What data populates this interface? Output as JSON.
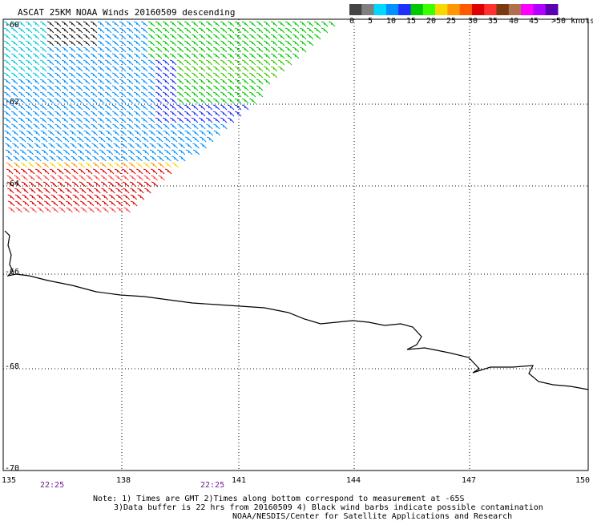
{
  "title": "ASCAT 25KM NOAA Winds 20160509 descending",
  "legend": {
    "colors": [
      "#444444",
      "#808080",
      "#00d8ff",
      "#0090ff",
      "#1e2fff",
      "#00c800",
      "#3cff00",
      "#f8d800",
      "#ff9800",
      "#ff5a00",
      "#dc0000",
      "#ff3030",
      "#7a3a10",
      "#b07050",
      "#ff00ff",
      "#b000ff",
      "#5a00b0"
    ],
    "labels": [
      "0",
      "5",
      "10",
      "15",
      "20",
      "25",
      "30",
      "35",
      "40",
      "45",
      ">50 knots"
    ]
  },
  "axes": {
    "lon_ticks": [
      "135",
      "138",
      "141",
      "144",
      "147",
      "150"
    ],
    "lat_ticks": [
      "-60",
      "-62",
      "-64",
      "-66",
      "-68",
      "-70"
    ]
  },
  "times": [
    "22:25",
    "22:25"
  ],
  "notes": [
    "Note: 1) Times are GMT 2)Times along bottom correspond to measurement at -65S",
    "3)Data buffer is 22 hrs from 20160509 4) Black wind barbs indicate possible contamination",
    "NOAA/NESDIS/Center for Satellite Applications and Research"
  ]
}
